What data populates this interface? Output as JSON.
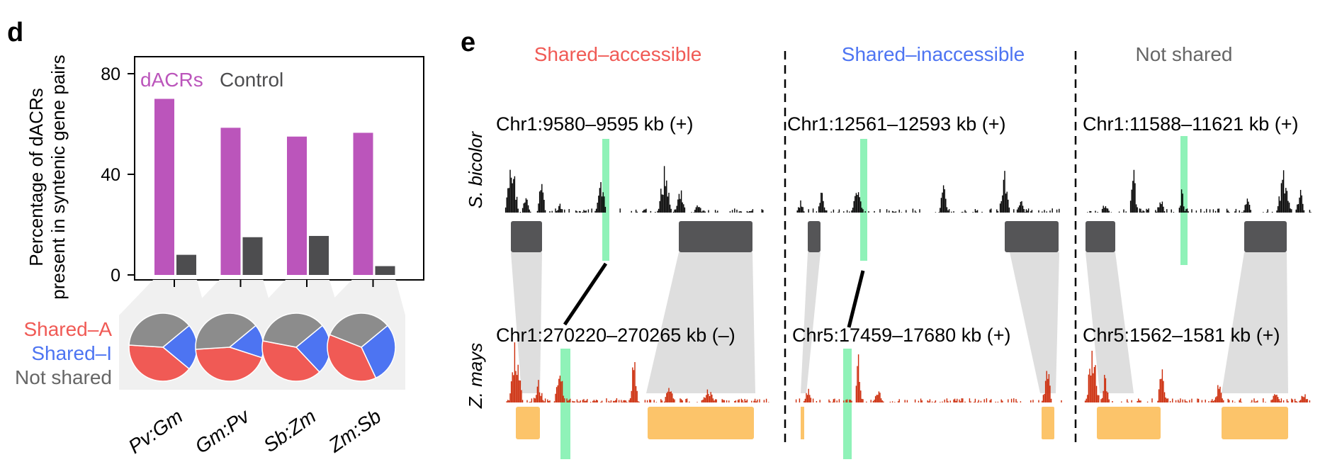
{
  "panel_labels": {
    "left": "d",
    "right": "e"
  },
  "colors": {
    "dacr": "#bb55bb",
    "control": "#4d4d4f",
    "shared_a": "#f05a55",
    "shared_i": "#4d74f2",
    "not_shared": "#8c8c8c",
    "title_accessible": "#f05a55",
    "title_inaccessible": "#4d74f2",
    "title_notshared": "#666666",
    "sb_track": "#000000",
    "zm_track": "#cc2a08",
    "sb_gene": "#555557",
    "zm_gene": "#fcc46a",
    "highlight": "#8ff2b8",
    "synteny": "#dedede"
  },
  "chart_data": [
    {
      "type": "bar",
      "categories": [
        "Pv:Gm",
        "Gm:Pv",
        "Sb:Zm",
        "Zm:Sb"
      ],
      "series": [
        {
          "name": "dACRs",
          "values": [
            70,
            58.5,
            55,
            56.5
          ]
        },
        {
          "name": "Control",
          "values": [
            8,
            15,
            15.5,
            3.5
          ]
        }
      ],
      "ylabel_lines": [
        "Percentage of dACRs",
        "present in syntenic gene pairs"
      ],
      "yticks": [
        0,
        40,
        80
      ],
      "ylim": [
        0,
        85
      ]
    },
    {
      "type": "pie",
      "legend": [
        "Shared–A",
        "Shared–I",
        "Not shared"
      ],
      "pies": [
        {
          "category": "Pv:Gm",
          "shared_a": 40,
          "shared_i": 22,
          "not_shared": 38
        },
        {
          "category": "Gm:Pv",
          "shared_a": 44,
          "shared_i": 16,
          "not_shared": 40
        },
        {
          "category": "Sb:Zm",
          "shared_a": 40,
          "shared_i": 24,
          "not_shared": 36
        },
        {
          "category": "Zm:Sb",
          "shared_a": 38,
          "shared_i": 29,
          "not_shared": 33
        }
      ]
    }
  ],
  "genome_panel": {
    "columns": [
      {
        "title": "Shared–accessible",
        "sb_region": "Chr1:9580–9595 kb (+)",
        "zm_region": "Chr1:270220–270265 kb (–)"
      },
      {
        "title": "Shared–inaccessible",
        "sb_region": "Chr1:12561–12593 kb (+)",
        "zm_region": "Chr5:17459–17680 kb (+)"
      },
      {
        "title": "Not shared",
        "sb_region": "Chr1:11588–11621 kb (+)",
        "zm_region": "Chr5:1562–1581 kb (+)"
      }
    ],
    "species": {
      "top": "S. bicolor",
      "bottom": "Z. mays"
    }
  }
}
